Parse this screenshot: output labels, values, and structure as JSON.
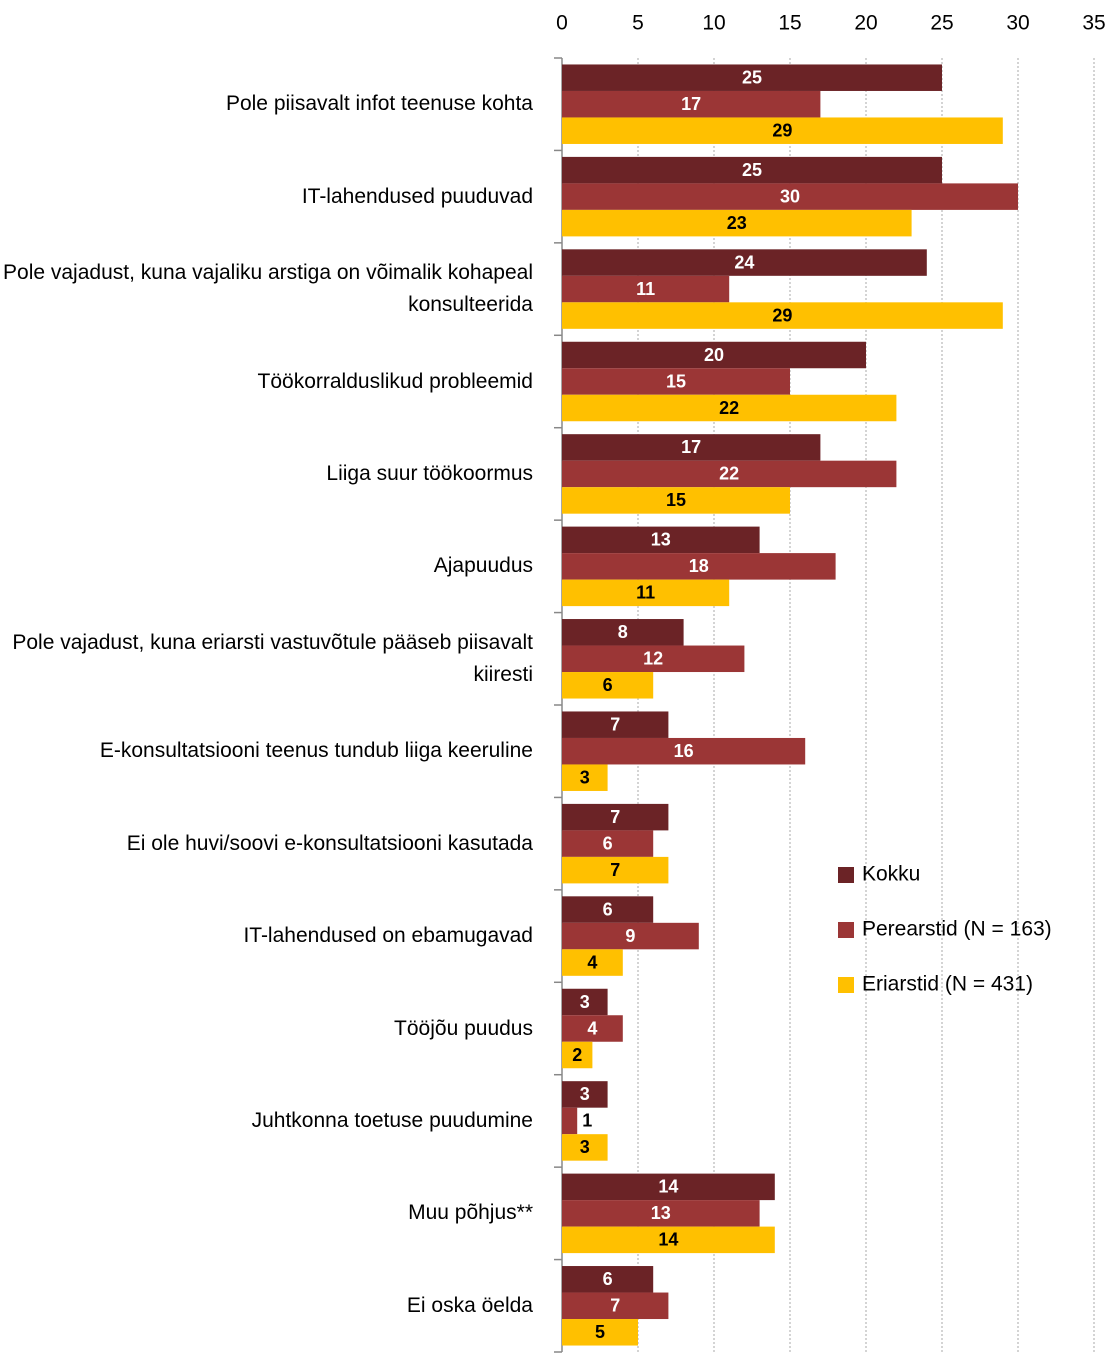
{
  "chart_data": {
    "type": "bar",
    "orientation": "horizontal",
    "categories": [
      "Pole piisavalt infot teenuse kohta",
      "IT-lahendused puuduvad",
      "Pole vajadust, kuna vajaliku arstiga on võimalik kohapeal konsulteerida",
      "Töökorralduslikud probleemid",
      "Liiga suur töökoormus",
      "Ajapuudus",
      "Pole vajadust, kuna eriarsti vastuvõtule pääseb piisavalt kiiresti",
      "E-konsultatsiooni teenus tundub liiga keeruline",
      "Ei ole huvi/soovi e-konsultatsiooni kasutada",
      "IT-lahendused on ebamugavad",
      "Tööjõu puudus",
      "Juhtkonna toetuse puudumine",
      "Muu põhjus**",
      "Ei oska öelda"
    ],
    "series": [
      {
        "name": "Kokku",
        "color": "#6b2326",
        "values": [
          25,
          25,
          24,
          20,
          17,
          13,
          8,
          7,
          7,
          6,
          3,
          3,
          14,
          6
        ]
      },
      {
        "name": "Perearstid (N = 163)",
        "color": "#9b3636",
        "values": [
          17,
          30,
          11,
          15,
          22,
          18,
          12,
          16,
          6,
          9,
          4,
          1,
          13,
          7
        ]
      },
      {
        "name": "Eriarstid (N = 431)",
        "color": "#ffc000",
        "values": [
          29,
          23,
          29,
          22,
          15,
          11,
          6,
          3,
          7,
          4,
          2,
          3,
          14,
          5
        ]
      }
    ],
    "xlim": [
      0,
      35
    ],
    "xticks": [
      0,
      5,
      10,
      15,
      20,
      25,
      30,
      35
    ],
    "grid": true,
    "legend": "right"
  }
}
